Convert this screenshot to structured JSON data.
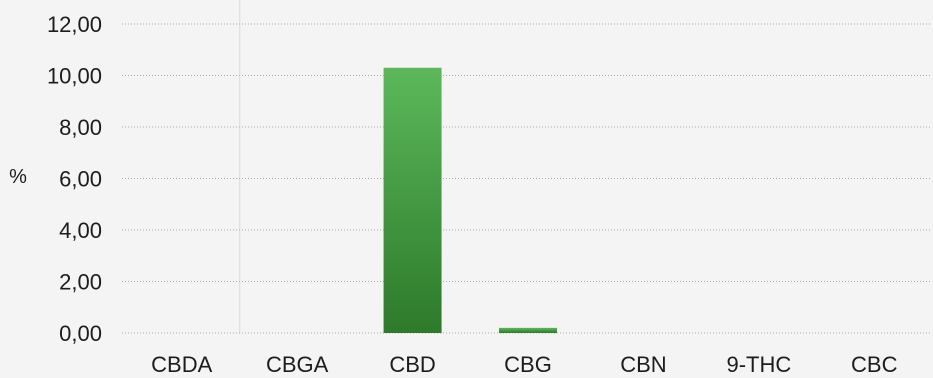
{
  "chart_data": {
    "type": "bar",
    "title": "",
    "xlabel": "",
    "ylabel": "%",
    "categories": [
      "CBDA",
      "CBGA",
      "CBD",
      "CBG",
      "CBN",
      "9-THC",
      "CBC"
    ],
    "values": [
      0,
      0,
      10.3,
      0.2,
      0,
      0,
      0
    ],
    "ylim": [
      0,
      12
    ],
    "yticks": [
      0,
      2,
      4,
      6,
      8,
      10,
      12
    ],
    "ytick_labels": [
      "0,00",
      "2,00",
      "4,00",
      "6,00",
      "8,00",
      "10,00",
      "12,00"
    ],
    "grid": true,
    "legend": "none",
    "bar_color": "#3f9a3c",
    "bar_color_light": "#5cb85a",
    "bar_color_dark": "#2d7a2b"
  }
}
